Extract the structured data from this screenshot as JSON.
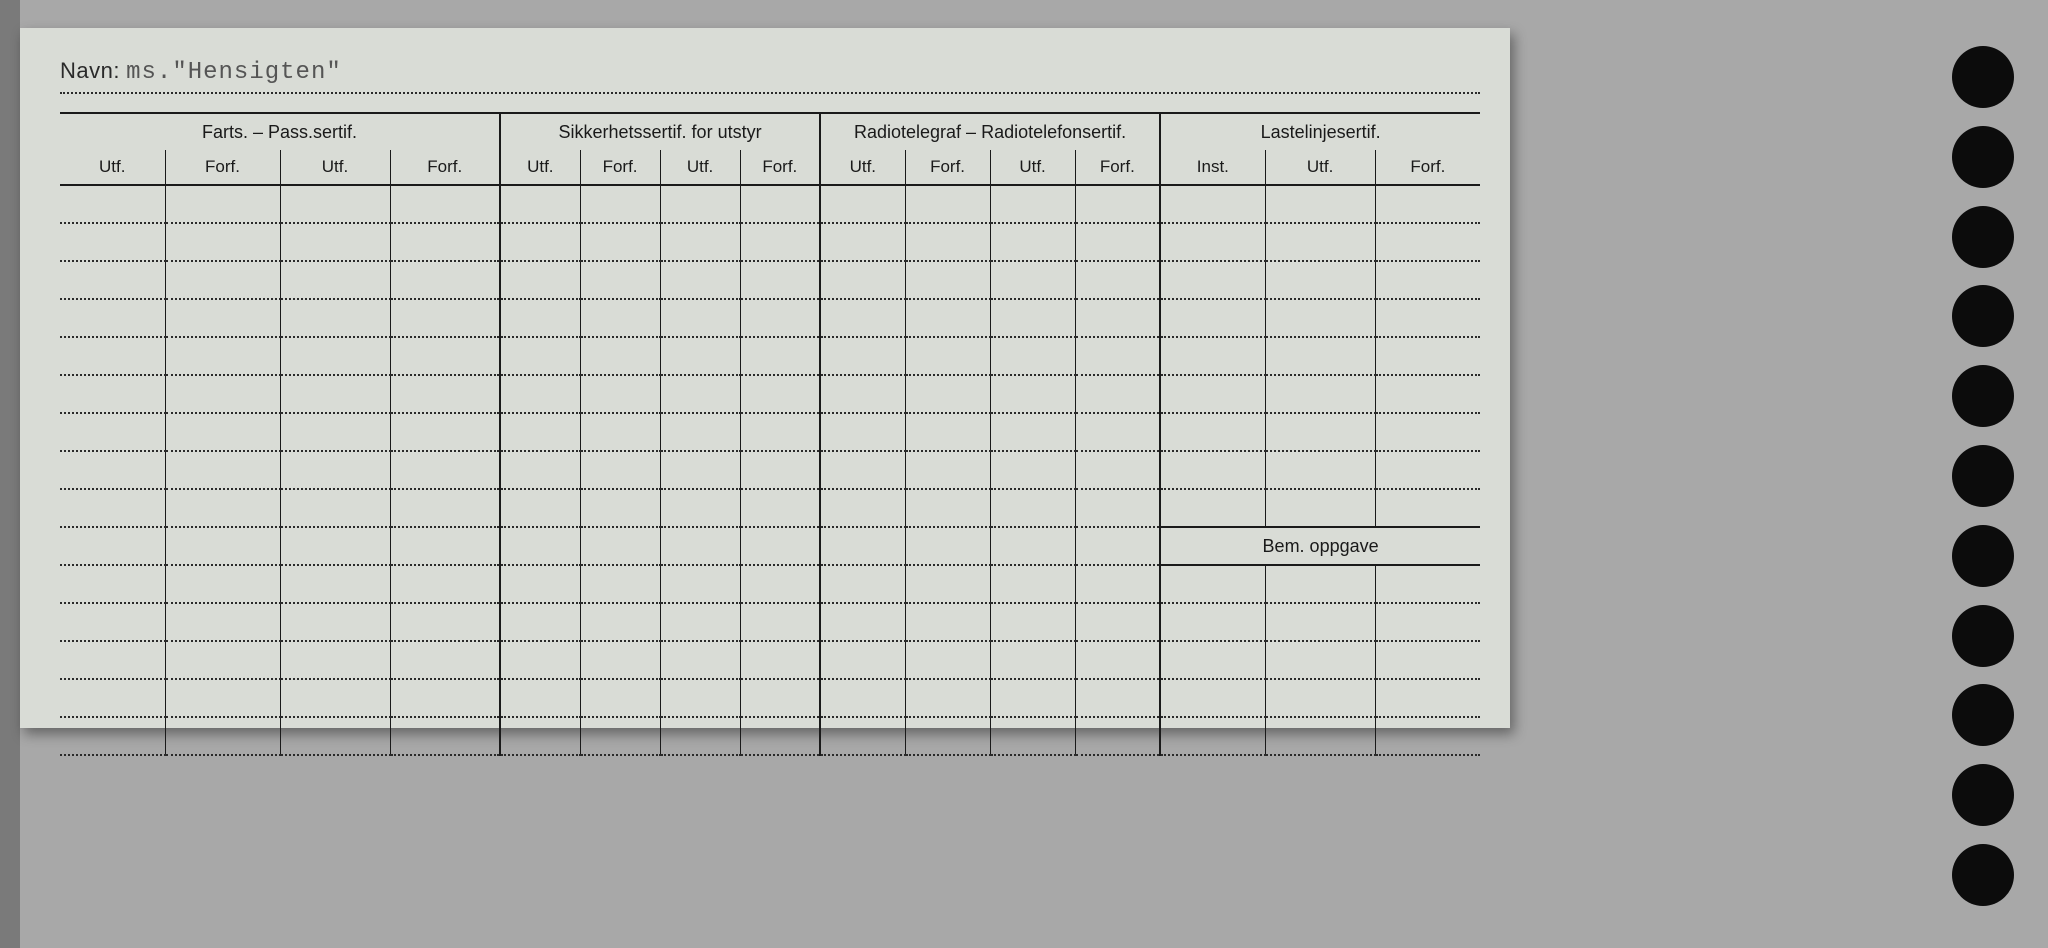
{
  "navn": {
    "label": "Navn:",
    "value": "ms.\"Hensigten\""
  },
  "groups": [
    {
      "title": "Farts. – Pass.sertif.",
      "cols": [
        "Utf.",
        "Forf.",
        "Utf.",
        "Forf."
      ],
      "widths": [
        105,
        115,
        110,
        110
      ]
    },
    {
      "title": "Sikkerhetssertif. for utstyr",
      "cols": [
        "Utf.",
        "Forf.",
        "Utf.",
        "Forf."
      ],
      "widths": [
        80,
        80,
        80,
        80
      ]
    },
    {
      "title": "Radiotelegraf – Radiotelefonsertif.",
      "cols": [
        "Utf.",
        "Forf.",
        "Utf.",
        "Forf."
      ],
      "widths": [
        85,
        85,
        85,
        85
      ]
    },
    {
      "title": "Lastelinjesertif.",
      "cols": [
        "Inst.",
        "Utf.",
        "Forf."
      ],
      "widths": [
        105,
        110,
        105
      ]
    }
  ],
  "bem_label": "Bem. oppgave",
  "body_rows": 15,
  "last_group_split_after_row": 9,
  "style": {
    "card_bg": "#d9dcd6",
    "page_bg": "#a8a8a8",
    "line_color": "#1a1a1a",
    "dotted_color": "#2a2a2a",
    "font_size_header": 18,
    "font_size_sub": 17,
    "hole_color": "#0c0c0c",
    "hole_count": 11
  }
}
